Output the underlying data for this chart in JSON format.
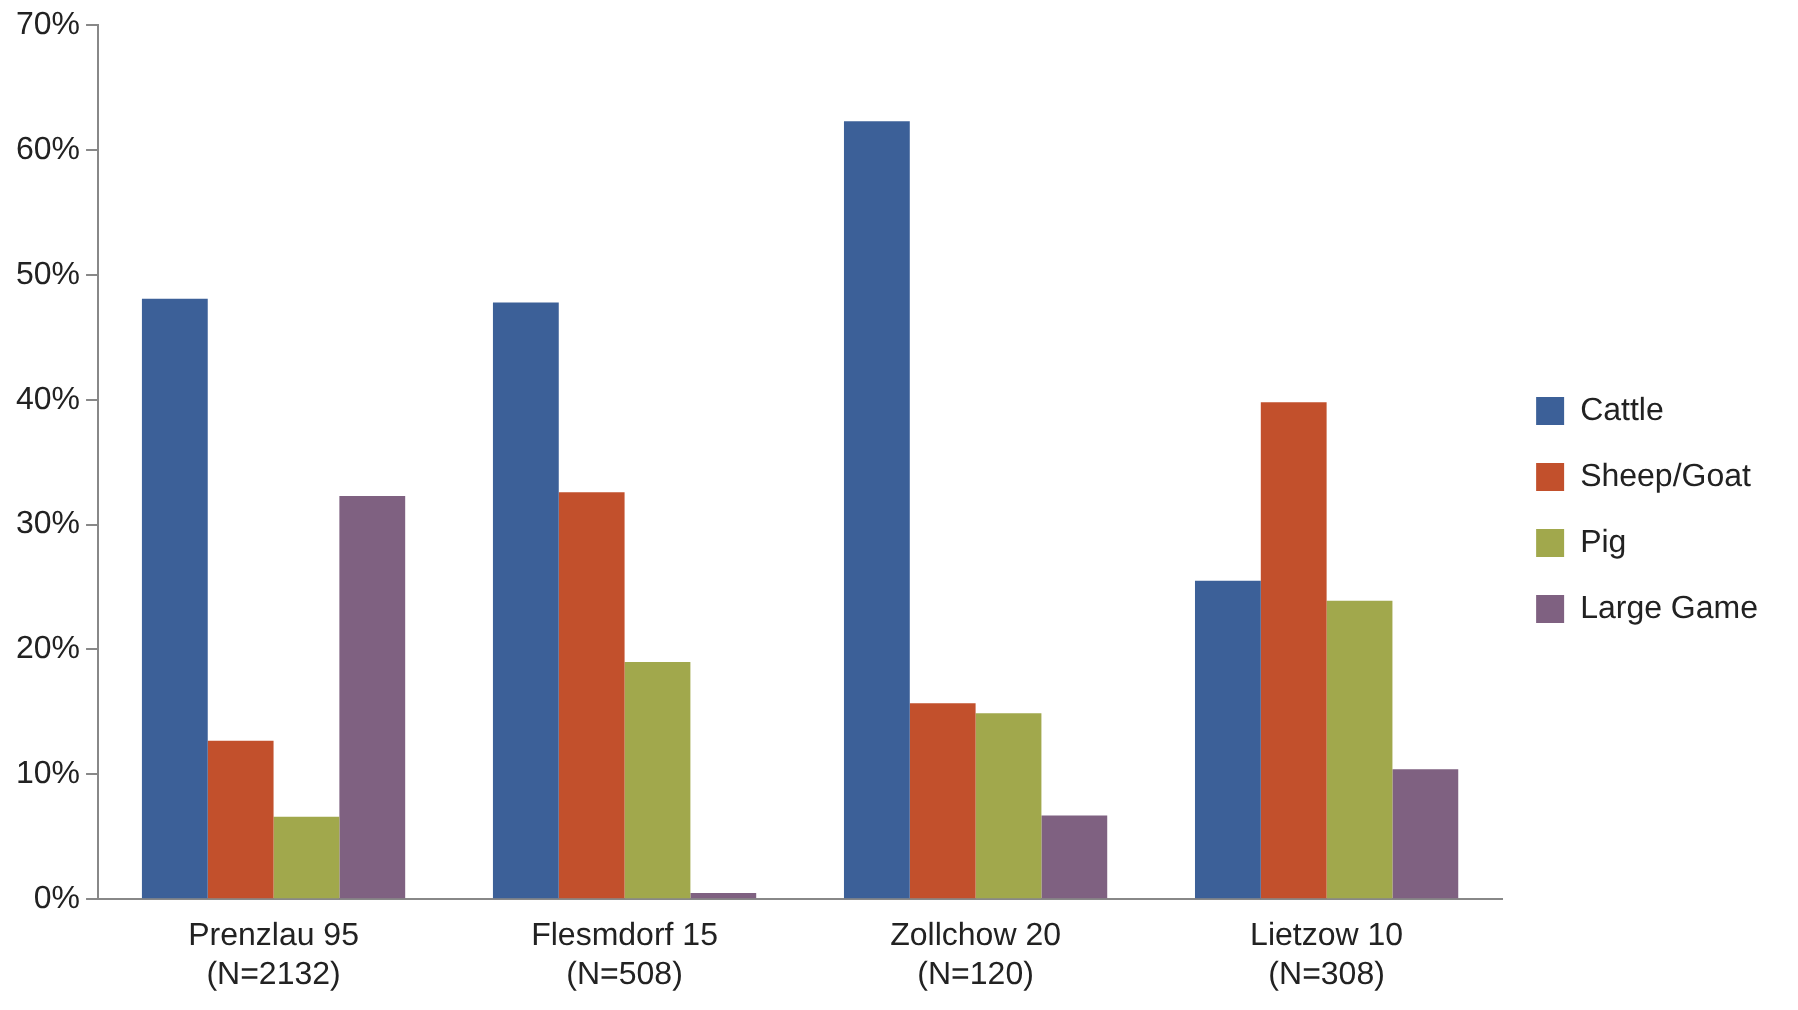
{
  "chart_data": {
    "type": "bar",
    "categories": [
      "Prenzlau 95\n(N=2132)",
      "Flesmdorf 15\n(N=508)",
      "Zollchow 20\n(N=120)",
      "Lietzow 10\n(N=308)"
    ],
    "series": [
      {
        "name": "Cattle",
        "color": "#3c6098",
        "values": [
          48.1,
          47.8,
          62.3,
          25.5
        ]
      },
      {
        "name": "Sheep/Goat",
        "color": "#c2502c",
        "values": [
          12.7,
          32.6,
          15.7,
          39.8
        ]
      },
      {
        "name": "Pig",
        "color": "#a1a84c",
        "values": [
          6.6,
          19.0,
          14.9,
          23.9
        ]
      },
      {
        "name": "Large Game",
        "color": "#7f6181",
        "values": [
          32.3,
          0.5,
          6.7,
          10.4
        ]
      }
    ],
    "ylim": [
      0,
      70
    ],
    "yticks": [
      {
        "value": 0,
        "label": "0%"
      },
      {
        "value": 10,
        "label": "10%"
      },
      {
        "value": 20,
        "label": "20%"
      },
      {
        "value": 30,
        "label": "30%"
      },
      {
        "value": 40,
        "label": "40%"
      },
      {
        "value": 50,
        "label": "50%"
      },
      {
        "value": 60,
        "label": "60%"
      },
      {
        "value": 70,
        "label": "70%"
      }
    ],
    "grid": false,
    "legend": "right"
  }
}
